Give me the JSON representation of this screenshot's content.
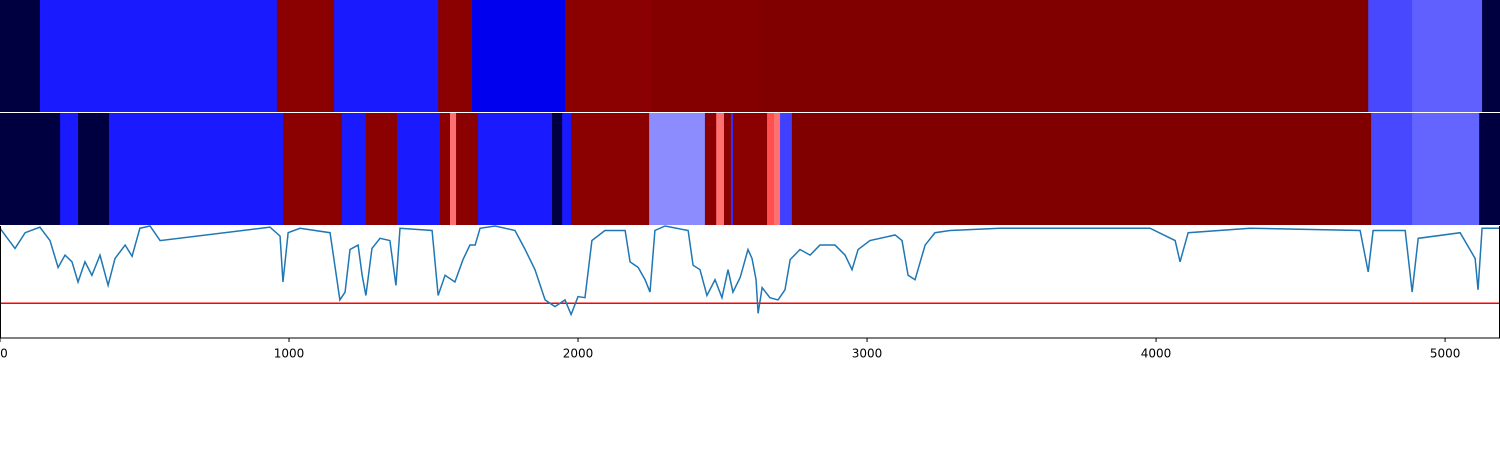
{
  "chart_data": [
    {
      "type": "segments",
      "xlim": [
        0,
        5190
      ],
      "edges": [
        0,
        138,
        958,
        1156,
        1516,
        1633,
        1955,
        2256,
        2637,
        4734,
        4886,
        5128,
        5190
      ],
      "colors": [
        "#000040",
        "#1a1aff",
        "#8b0000",
        "#1a1aff",
        "#8b0000",
        "#0000ee",
        "#8b0000",
        "#840000",
        "#800000",
        "#4848ff",
        "#6060ff",
        "#000040"
      ]
    },
    {
      "type": "segments",
      "xlim": [
        0,
        5190
      ],
      "edges": [
        0,
        208,
        270,
        377,
        979,
        1183,
        1266,
        1374,
        1522,
        1557,
        1578,
        1654,
        1910,
        1945,
        1976,
        2246,
        2439,
        2478,
        2505,
        2529,
        2536,
        2654,
        2678,
        2699,
        2740,
        4744,
        4886,
        5118,
        5190
      ],
      "colors": [
        "#000040",
        "#1a1aff",
        "#000040",
        "#1a1aff",
        "#8b0000",
        "#1a1aff",
        "#8b0000",
        "#1a1aff",
        "#8b0000",
        "#ff7070",
        "#8b0000",
        "#1a1aff",
        "#000040",
        "#1a1aff",
        "#8b0000",
        "#8c8cff",
        "#8b0000",
        "#ff7070",
        "#8b0000",
        "#3030ff",
        "#8b0000",
        "#ff5050",
        "#ff7070",
        "#4040ff",
        "#800000",
        "#4848ff",
        "#6464ff",
        "#000040"
      ]
    },
    {
      "type": "line",
      "xlim": [
        0,
        5190
      ],
      "ylim": [
        0,
        1
      ],
      "xticks": [
        0,
        1000,
        2000,
        3000,
        4000,
        5000
      ],
      "color": "#1f77b4",
      "hline": 0.31,
      "hline_color": "#ff0000",
      "x": [
        0,
        17,
        52,
        87,
        138,
        173,
        201,
        225,
        249,
        270,
        294,
        318,
        346,
        374,
        398,
        433,
        457,
        484,
        519,
        554,
        934,
        969,
        979,
        997,
        1038,
        1142,
        1176,
        1194,
        1211,
        1239,
        1253,
        1266,
        1287,
        1315,
        1349,
        1370,
        1384,
        1495,
        1516,
        1540,
        1574,
        1602,
        1626,
        1644,
        1661,
        1713,
        1782,
        1817,
        1851,
        1886,
        1920,
        1955,
        1976,
        2000,
        2024,
        2048,
        2093,
        2163,
        2180,
        2208,
        2232,
        2249,
        2266,
        2301,
        2381,
        2398,
        2422,
        2446,
        2474,
        2498,
        2519,
        2536,
        2561,
        2588,
        2602,
        2616,
        2623,
        2637,
        2664,
        2692,
        2716,
        2734,
        2768,
        2803,
        2837,
        2889,
        2924,
        2948,
        2969,
        3010,
        3097,
        3121,
        3142,
        3166,
        3201,
        3235,
        3287,
        3460,
        3979,
        4066,
        4083,
        4111,
        4325,
        4706,
        4734,
        4751,
        4862,
        4886,
        4907,
        5052,
        5104,
        5114,
        5128,
        5190
      ],
      "values": [
        0.98,
        0.92,
        0.8,
        0.94,
        0.99,
        0.87,
        0.63,
        0.74,
        0.68,
        0.5,
        0.68,
        0.56,
        0.74,
        0.47,
        0.71,
        0.83,
        0.73,
        0.98,
        1.0,
        0.87,
        0.99,
        0.91,
        0.5,
        0.94,
        0.98,
        0.94,
        0.34,
        0.41,
        0.79,
        0.83,
        0.56,
        0.38,
        0.8,
        0.89,
        0.87,
        0.47,
        0.98,
        0.96,
        0.38,
        0.56,
        0.5,
        0.7,
        0.83,
        0.83,
        0.98,
        1.0,
        0.96,
        0.79,
        0.61,
        0.34,
        0.28,
        0.34,
        0.21,
        0.37,
        0.36,
        0.87,
        0.96,
        0.96,
        0.68,
        0.63,
        0.52,
        0.41,
        0.96,
        1.0,
        0.96,
        0.65,
        0.61,
        0.38,
        0.52,
        0.36,
        0.61,
        0.41,
        0.54,
        0.79,
        0.71,
        0.52,
        0.22,
        0.45,
        0.36,
        0.34,
        0.43,
        0.7,
        0.79,
        0.74,
        0.83,
        0.83,
        0.74,
        0.61,
        0.79,
        0.87,
        0.92,
        0.87,
        0.56,
        0.52,
        0.83,
        0.94,
        0.96,
        0.98,
        0.98,
        0.87,
        0.68,
        0.94,
        0.98,
        0.96,
        0.59,
        0.96,
        0.96,
        0.41,
        0.89,
        0.94,
        0.71,
        0.43,
        0.98,
        0.98
      ]
    }
  ]
}
